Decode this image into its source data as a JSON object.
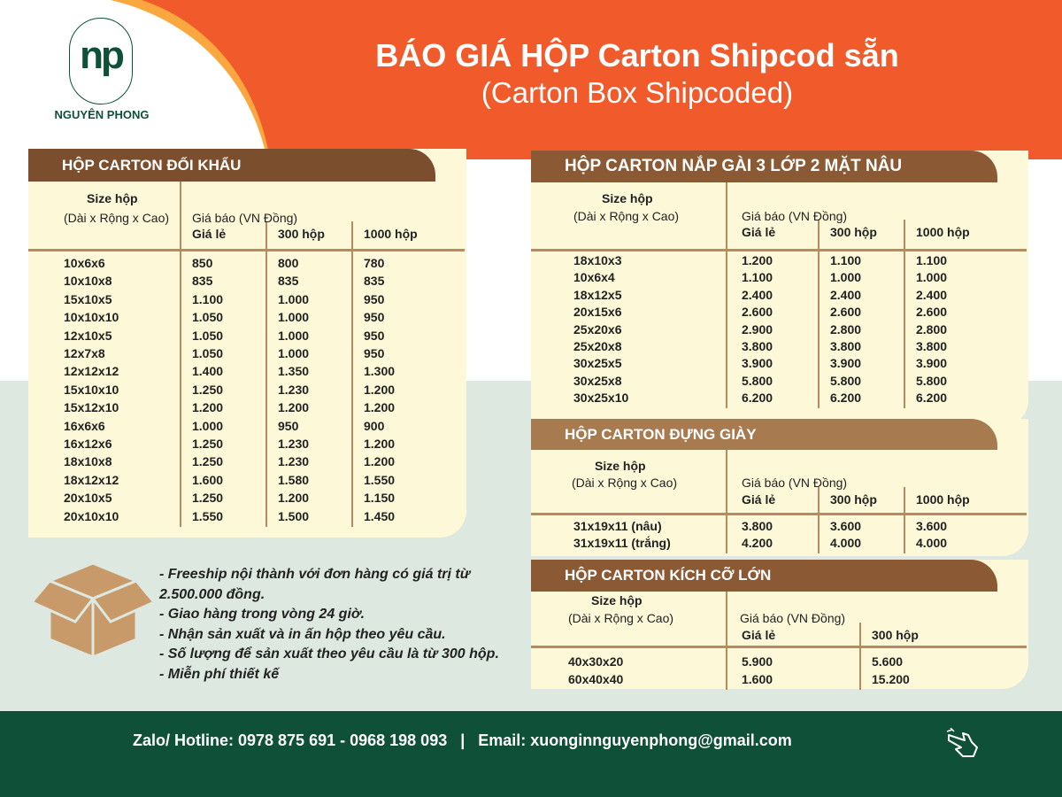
{
  "header": {
    "title": "BÁO GIÁ HỘP Carton Shipcod sẵn",
    "subtitle": "(Carton Box Shipcoded)",
    "logo_mark": "np",
    "logo_name": "NGUYÊN PHONG"
  },
  "colors": {
    "orange": "#f15a2b",
    "amber": "#f9a73e",
    "brown": "#7b4f2e",
    "brown_light": "#a77a50",
    "cream": "#fdf8d8",
    "mint": "#dde8e0",
    "green": "#0e5138"
  },
  "common": {
    "size_label": "Size hộp",
    "size_sub": "(Dài x Rộng x Cao)",
    "price_label": "Giá báo (VN Đồng)"
  },
  "tables": [
    {
      "title": "HỘP CARTON ĐỐI KHẨU",
      "columns": [
        "Giá lẻ",
        "300 hộp",
        "1000 hộp"
      ],
      "rows": [
        [
          "10x6x6",
          "850",
          "800",
          "780"
        ],
        [
          "10x10x8",
          "835",
          "835",
          "835"
        ],
        [
          "15x10x5",
          "1.100",
          "1.000",
          "950"
        ],
        [
          "10x10x10",
          "1.050",
          "1.000",
          "950"
        ],
        [
          "12x10x5",
          "1.050",
          "1.000",
          "950"
        ],
        [
          "12x7x8",
          "1.050",
          "1.000",
          "950"
        ],
        [
          "12x12x12",
          "1.400",
          "1.350",
          "1.300"
        ],
        [
          "15x10x10",
          "1.250",
          "1.230",
          "1.200"
        ],
        [
          "15x12x10",
          "1.200",
          "1.200",
          "1.200"
        ],
        [
          "16x6x6",
          "1.000",
          "950",
          "900"
        ],
        [
          "16x12x6",
          "1.250",
          "1.230",
          "1.200"
        ],
        [
          "18x10x8",
          "1.250",
          "1.230",
          "1.200"
        ],
        [
          "18x12x12",
          "1.600",
          "1.580",
          "1.550"
        ],
        [
          "20x10x5",
          "1.250",
          "1.200",
          "1.150"
        ],
        [
          "20x10x10",
          "1.550",
          "1.500",
          "1.450"
        ]
      ]
    },
    {
      "title": "HỘP CARTON NẮP GÀI 3 LỚP 2 MẶT NÂU",
      "columns": [
        "Giá lẻ",
        "300 hộp",
        "1000 hộp"
      ],
      "rows": [
        [
          "18x10x3",
          "1.200",
          "1.100",
          "1.100"
        ],
        [
          "10x6x4",
          "1.100",
          "1.000",
          "1.000"
        ],
        [
          "18x12x5",
          "2.400",
          "2.400",
          "2.400"
        ],
        [
          "20x15x6",
          "2.600",
          "2.600",
          "2.600"
        ],
        [
          "25x20x6",
          "2.900",
          "2.800",
          "2.800"
        ],
        [
          "25x20x8",
          "3.800",
          "3.800",
          "3.800"
        ],
        [
          "30x25x5",
          "3.900",
          "3.900",
          "3.900"
        ],
        [
          "30x25x8",
          "5.800",
          "5.800",
          "5.800"
        ],
        [
          "30x25x10",
          "6.200",
          "6.200",
          "6.200"
        ]
      ]
    },
    {
      "title": "HỘP CARTON ĐỰNG GIÀY",
      "columns": [
        "Giá lẻ",
        "300 hộp",
        "1000 hộp"
      ],
      "rows": [
        [
          "31x19x11 (nâu)",
          "3.800",
          "3.600",
          "3.600"
        ],
        [
          "31x19x11 (trắng)",
          "4.200",
          "4.000",
          "4.000"
        ]
      ]
    },
    {
      "title": "HỘP CARTON KÍCH CỠ LỚN",
      "columns": [
        "Giá lẻ",
        "300 hộp"
      ],
      "rows": [
        [
          "40x30x20",
          "5.900",
          "5.600"
        ],
        [
          "60x40x40",
          "1.600",
          "15.200"
        ]
      ]
    }
  ],
  "notes": [
    "- Freeship nội thành với đơn hàng có giá trị từ",
    "2.500.000 đồng.",
    "- Giao hàng trong vòng 24 giờ.",
    "- Nhận sản xuất và in ấn hộp theo yêu cầu.",
    "- Số lượng để sản xuất theo yêu cầu là từ 300 hộp.",
    "- Miễn phí thiết kế"
  ],
  "footer": {
    "contact": "Zalo/ Hotline: 0978 875 691 - 0968 198 093   |   Email: xuonginnguyenphong@gmail.com",
    "icon": "pointing-hand-icon"
  }
}
